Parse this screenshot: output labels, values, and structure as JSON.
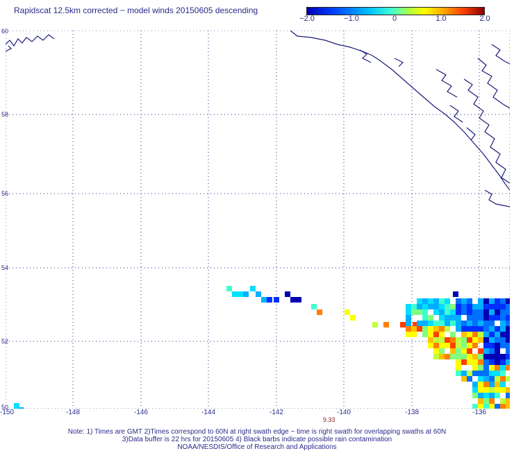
{
  "title": "Rapidscat 12.5km corrected − model winds 20150605 descending",
  "colorbar": {
    "ticks": [
      "−2.0",
      "−1.0",
      "0",
      "1.0",
      "2.0"
    ]
  },
  "axes": {
    "lat_labels": [
      "60",
      "58",
      "56",
      "54",
      "52",
      "50"
    ],
    "lon_labels": [
      "-150",
      "-148",
      "-146",
      "-144",
      "-142",
      "-140",
      "-138",
      "-136"
    ]
  },
  "time_label": "9.33",
  "notes": {
    "line1": "Note: 1) Times are GMT 2)Times correspond to 60N at right swath edge − time is right swath for overlapping swaths at 60N",
    "line2": "3)Data buffer is 22 hrs for 20150605 4) Black barbs indicate possible rain contamination",
    "line3": "NOAA/NESDIS/Office of Research and Applications"
  },
  "colors": {
    "coastline": "#1a1a7a",
    "grid": "#2a2a8a"
  }
}
